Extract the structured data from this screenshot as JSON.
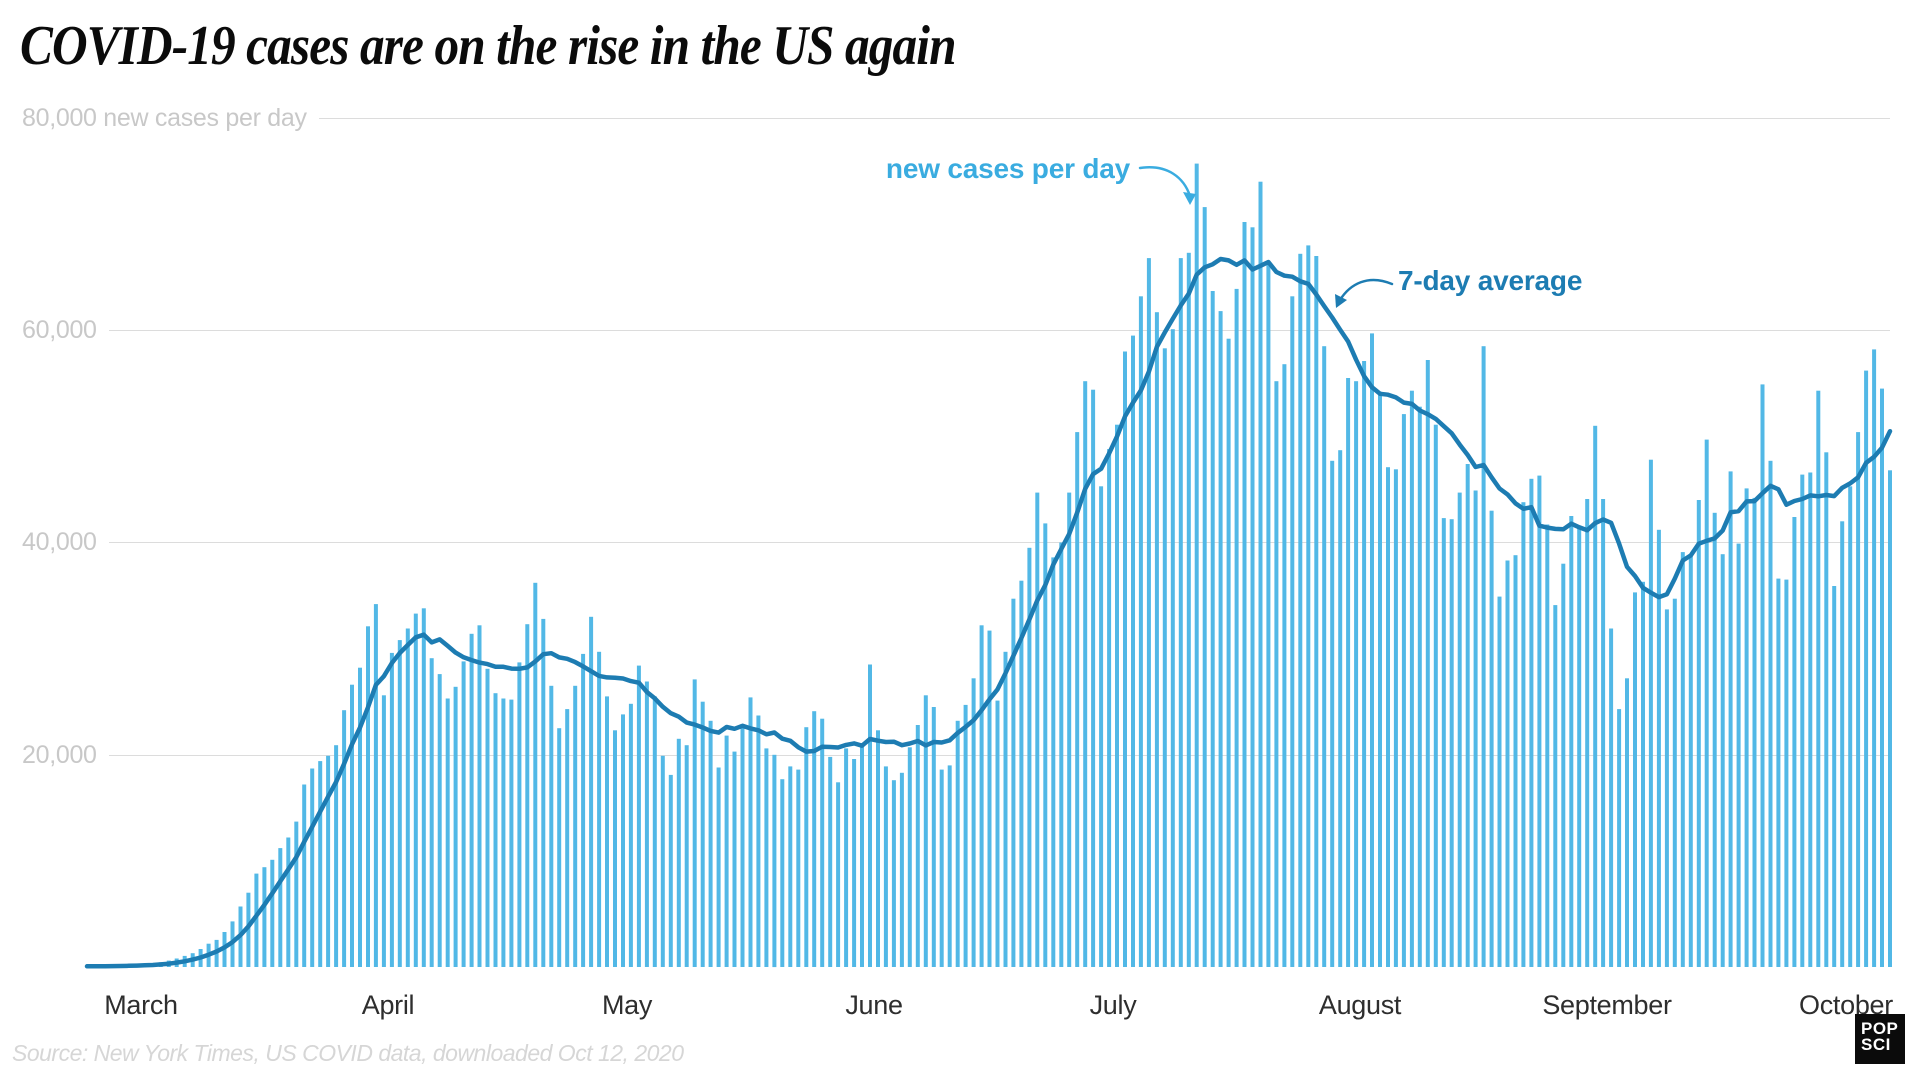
{
  "page": {
    "title": "COVID-19 cases are on the rise in the US again",
    "source": "Source: New York Times, US COVID data, downloaded Oct 12, 2020",
    "logo": {
      "line1": "POP",
      "line2": "SCI"
    }
  },
  "chart_data": {
    "type": "bar",
    "title": "COVID-19 cases are on the rise in the US again",
    "xlabel": "",
    "ylabel": "new cases per day",
    "ylabel_top": "80,000 new cases per day",
    "y_ticks": [
      20000,
      40000,
      60000,
      80000
    ],
    "y_tick_labels": [
      "20,000",
      "40,000",
      "60,000"
    ],
    "ylim": [
      0,
      80000
    ],
    "grid": "horizontal gridlines every 20,000; no vertical gridlines; no axis line",
    "legend_position": "inline annotations with curved arrows",
    "start_date": "2020-03-01",
    "end_date": "2020-10-11",
    "x_months": [
      "March",
      "April",
      "May",
      "June",
      "July",
      "August",
      "September",
      "October"
    ],
    "days_per_month": [
      31,
      30,
      31,
      30,
      31,
      31,
      30,
      11
    ],
    "annotations": [
      {
        "text": "new cases per day",
        "color": "#3aace0",
        "points_to": "tallest daily bar (~75,700, mid-July)"
      },
      {
        "text": "7-day average",
        "color": "#1d7cb2",
        "points_to": "average line during the early-August decline"
      }
    ],
    "colors": {
      "bar": "#52b8e6",
      "line": "#1d7cb2",
      "gridline": "#dcdcdc",
      "y_axis_label": "#c8c8c8",
      "month_label": "#2e2e2e",
      "source_text": "#d6d6d6",
      "title_text": "#0b0b0b",
      "logo_bg": "#0b0b0b",
      "logo_text": "#ffffff"
    },
    "series": [
      {
        "name": "new cases per day",
        "type": "bar",
        "color": "#52b8e6",
        "values": [
          70,
          100,
          120,
          150,
          220,
          310,
          350,
          440,
          600,
          800,
          1050,
          1300,
          1700,
          2200,
          2550,
          3300,
          4300,
          5700,
          7000,
          8800,
          9400,
          10100,
          11200,
          12200,
          13700,
          17200,
          18700,
          19400,
          19900,
          20900,
          24200,
          26600,
          28200,
          32100,
          34200,
          25600,
          29600,
          30800,
          31900,
          33300,
          33800,
          29100,
          27600,
          25300,
          26400,
          28800,
          31400,
          32200,
          28100,
          25800,
          25300,
          25200,
          28700,
          32300,
          36200,
          32800,
          26500,
          22500,
          24300,
          26500,
          29500,
          33000,
          29700,
          25500,
          22300,
          23800,
          24800,
          28400,
          26900,
          25500,
          19900,
          18100,
          21500,
          20900,
          27100,
          25000,
          23200,
          18800,
          21800,
          20300,
          22900,
          25400,
          23700,
          20600,
          20000,
          17700,
          18900,
          18600,
          22600,
          24100,
          23400,
          19800,
          17400,
          20600,
          19600,
          21100,
          28500,
          22300,
          18900,
          17600,
          18300,
          20700,
          22800,
          25600,
          24500,
          18600,
          19000,
          23200,
          24700,
          27200,
          32200,
          31700,
          25100,
          29700,
          34700,
          36400,
          39500,
          44700,
          41800,
          38600,
          40000,
          44700,
          50400,
          55200,
          54400,
          45300,
          48800,
          51100,
          58000,
          59500,
          63200,
          66800,
          61700,
          58300,
          60100,
          66800,
          67300,
          75700,
          71600,
          63700,
          61800,
          59200,
          63900,
          70200,
          69700,
          74000,
          66200,
          55200,
          56800,
          63200,
          67200,
          68000,
          67000,
          58500,
          47700,
          48700,
          55500,
          55200,
          57100,
          59700,
          54200,
          47100,
          46900,
          52100,
          54300,
          52800,
          57200,
          51100,
          42300,
          42200,
          44700,
          47400,
          44900,
          58500,
          43000,
          34900,
          38300,
          38800,
          43800,
          46000,
          46300,
          41700,
          34100,
          38000,
          42500,
          41400,
          44100,
          51000,
          44100,
          31900,
          24300,
          27200,
          35300,
          36300,
          47800,
          41200,
          33700,
          34700,
          39100,
          38700,
          44000,
          49700,
          42800,
          38900,
          46700,
          39900,
          45100,
          44200,
          54900,
          47700,
          36600,
          36500,
          42400,
          46400,
          46600,
          54300,
          48500,
          35900,
          42000,
          45300,
          50400,
          56200,
          58200,
          54500,
          46800
        ]
      },
      {
        "name": "7-day average",
        "type": "line",
        "color": "#1d7cb2",
        "derivation": "trailing 7-day mean of the daily values series"
      }
    ]
  }
}
